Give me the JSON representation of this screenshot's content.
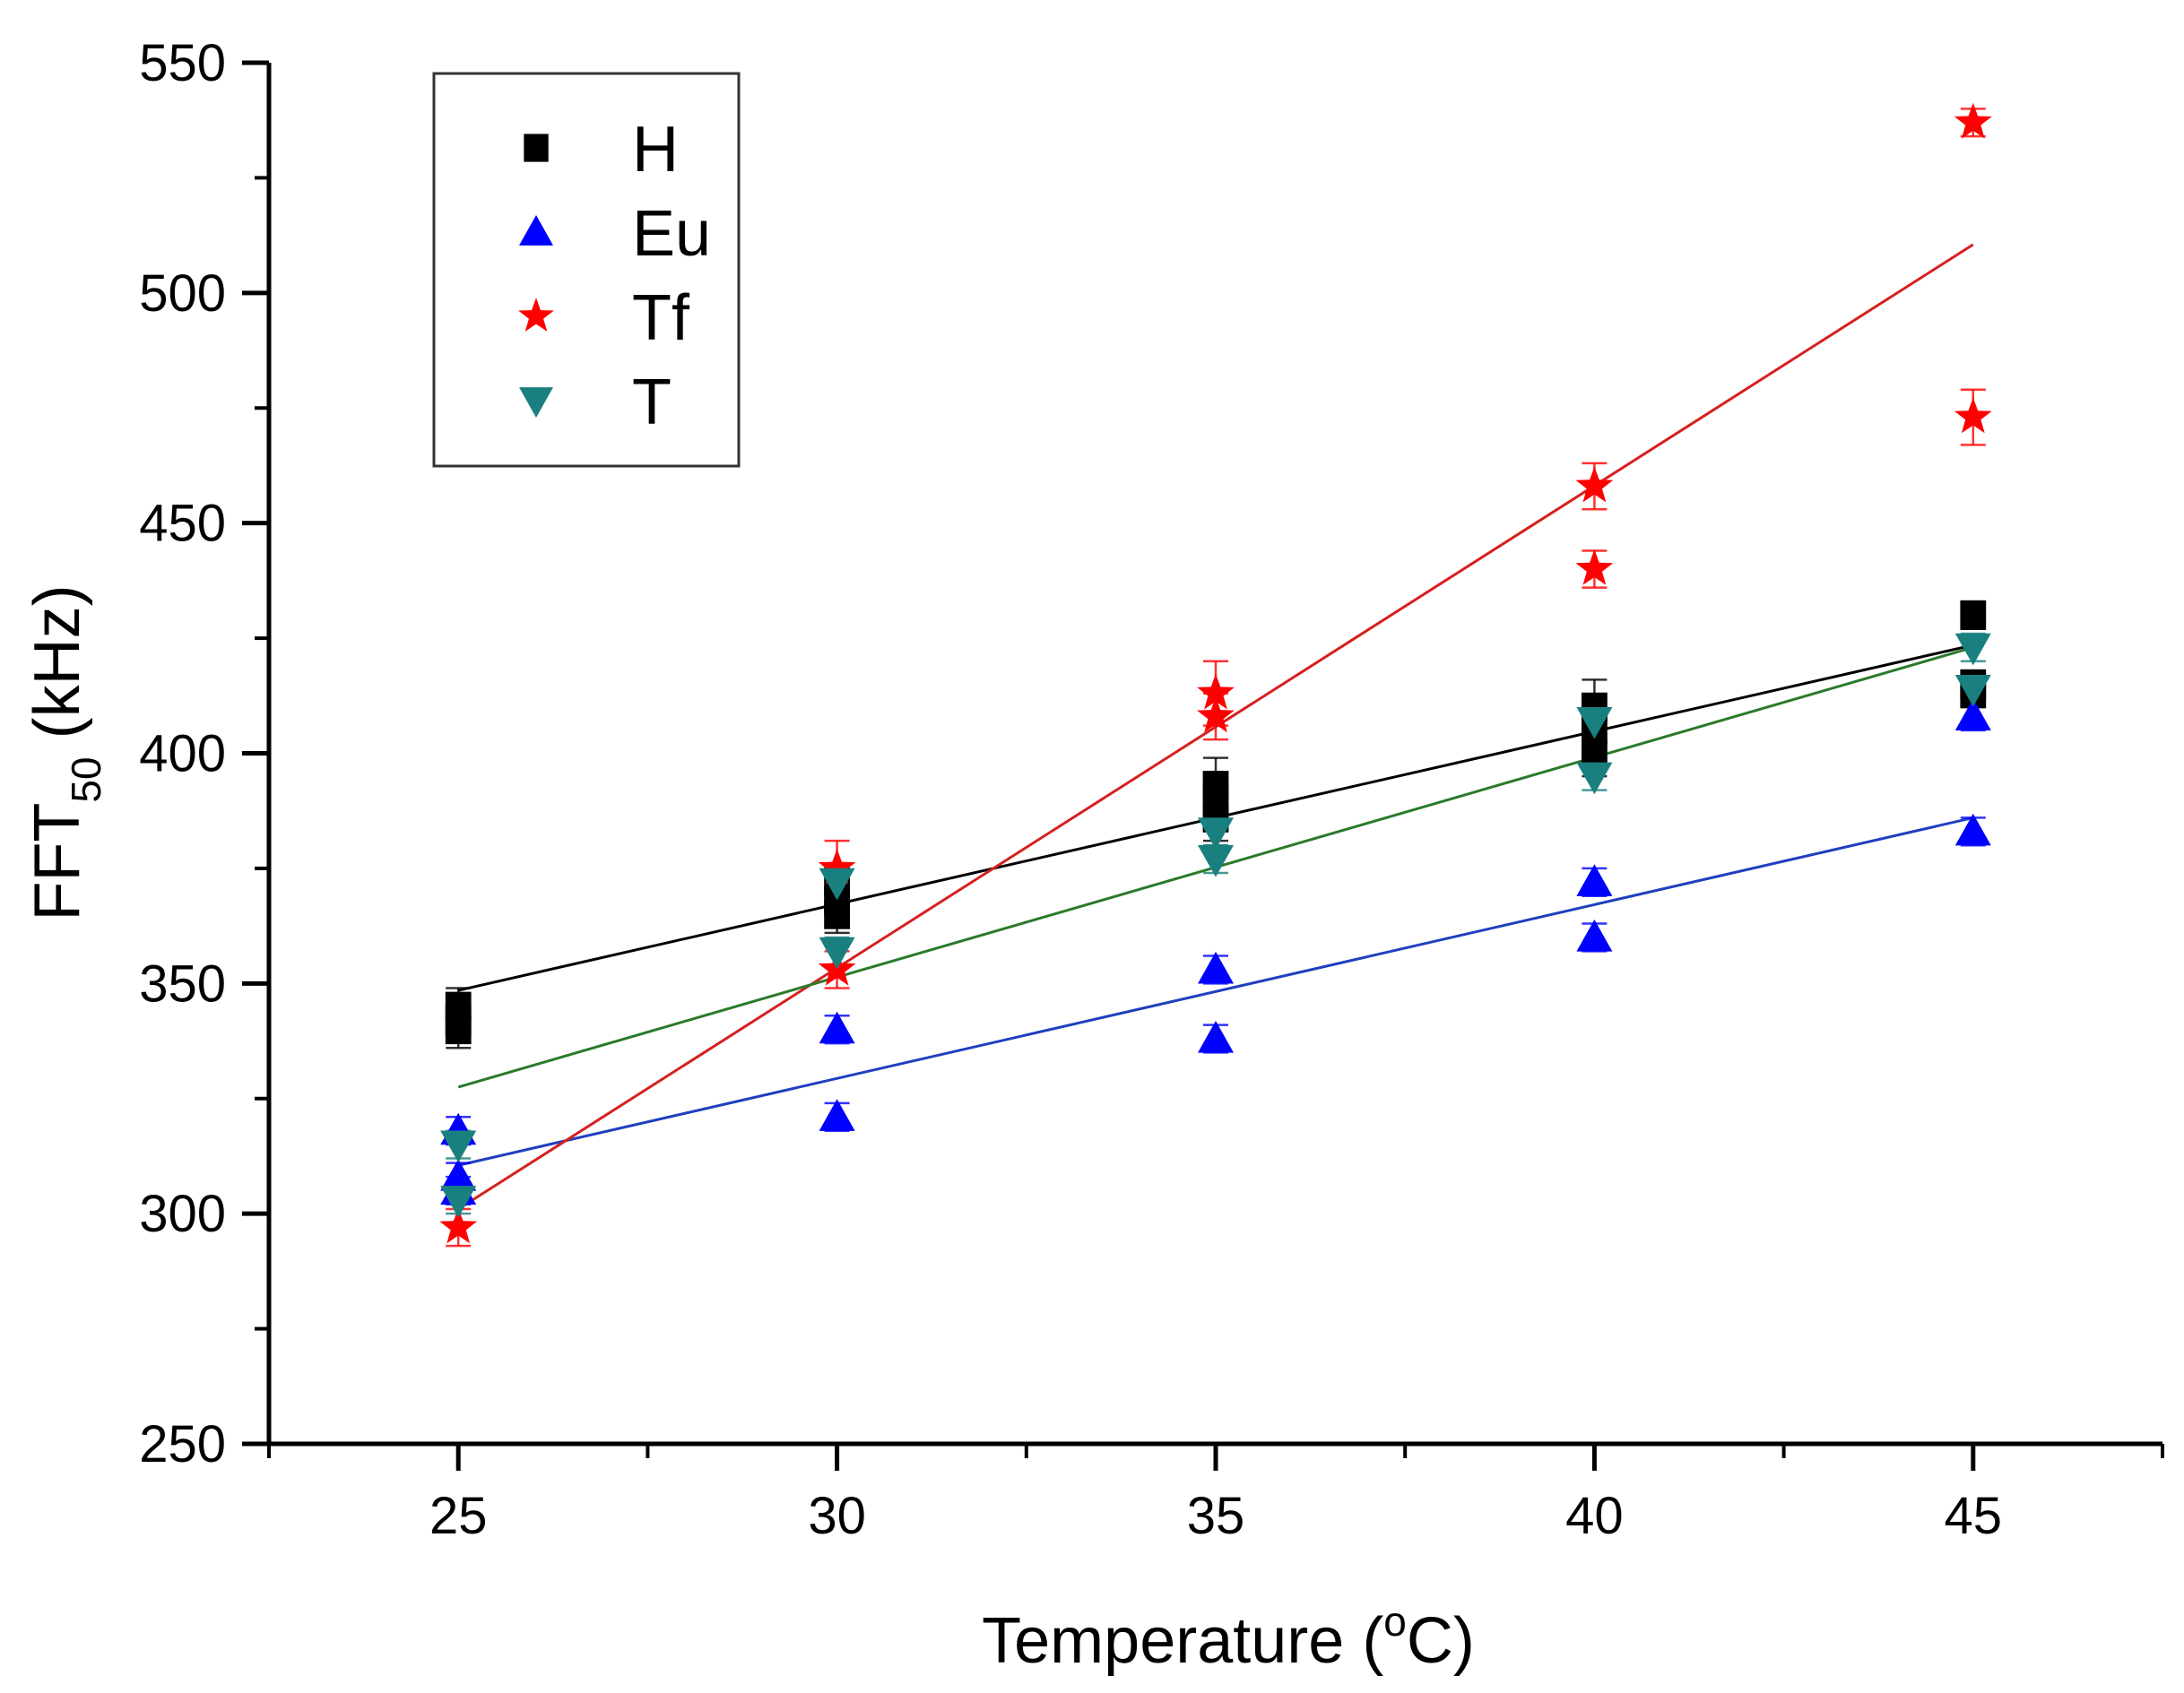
{
  "chart_data": {
    "type": "scatter",
    "title": "",
    "xlabel_main": "Temperature (",
    "xlabel_sup": "o",
    "xlabel_tail": "C)",
    "ylabel_main": "FFT",
    "ylabel_sub": "50",
    "ylabel_tail": " (kHz)",
    "xlim": [
      22.5,
      47.5
    ],
    "ylim": [
      250,
      550
    ],
    "x_ticks": [
      25,
      30,
      35,
      40,
      45
    ],
    "x_tick_labels": [
      "25",
      "30",
      "35",
      "40",
      "45"
    ],
    "y_ticks": [
      250,
      300,
      350,
      400,
      450,
      500,
      550
    ],
    "y_tick_labels": [
      "250",
      "300",
      "350",
      "400",
      "450",
      "500",
      "550"
    ],
    "legend_position": "top-left",
    "series": [
      {
        "name": "H",
        "marker": "square",
        "color": "#000000",
        "fit_color": "#000000",
        "x": [
          25,
          25,
          25,
          30,
          30,
          30,
          35,
          35,
          35,
          40,
          40,
          40,
          45,
          45,
          45
        ],
        "y": [
          345,
          342,
          340,
          372,
          368,
          365,
          393,
          390,
          386,
          410,
          405,
          400,
          430,
          415,
          413
        ],
        "err": [
          4,
          4,
          4,
          4,
          4,
          4,
          6,
          5,
          5,
          6,
          5,
          5,
          3,
          3,
          3
        ],
        "fit": [
          348.5,
          423.5
        ]
      },
      {
        "name": "Eu",
        "marker": "triangle-up",
        "color": "#0000ff",
        "fit_color": "#1f3fbf",
        "x": [
          25,
          25,
          25,
          30,
          30,
          35,
          35,
          40,
          40,
          45,
          45
        ],
        "y": [
          318,
          308,
          305,
          340,
          321,
          353,
          338,
          372,
          360,
          408,
          383
        ],
        "err": [
          3,
          3,
          3,
          3,
          3,
          3,
          3,
          3,
          3,
          3,
          3
        ],
        "fit": [
          310.5,
          386
        ]
      },
      {
        "name": "Tf",
        "marker": "star",
        "color": "#ff0000",
        "fit_color": "#d62020",
        "x": [
          25,
          30,
          30,
          35,
          35,
          40,
          40,
          45,
          45
        ],
        "y": [
          297,
          375,
          353,
          413,
          408,
          458,
          440,
          537,
          473
        ],
        "err": [
          4,
          6,
          4,
          7,
          5,
          5,
          4,
          3,
          6
        ],
        "fit": [
          301,
          510.5
        ]
      },
      {
        "name": "T",
        "marker": "triangle-down",
        "color": "#1a7f7f",
        "fit_color": "#2a7a2a",
        "x": [
          25,
          25,
          30,
          30,
          35,
          35,
          40,
          40,
          45,
          45
        ],
        "y": [
          315,
          303,
          372,
          357,
          383,
          377,
          407,
          395,
          423,
          414
        ],
        "err": [
          3,
          3,
          4,
          3,
          3,
          3,
          3,
          3,
          3,
          3
        ],
        "fit": [
          327.5,
          423
        ]
      }
    ]
  }
}
